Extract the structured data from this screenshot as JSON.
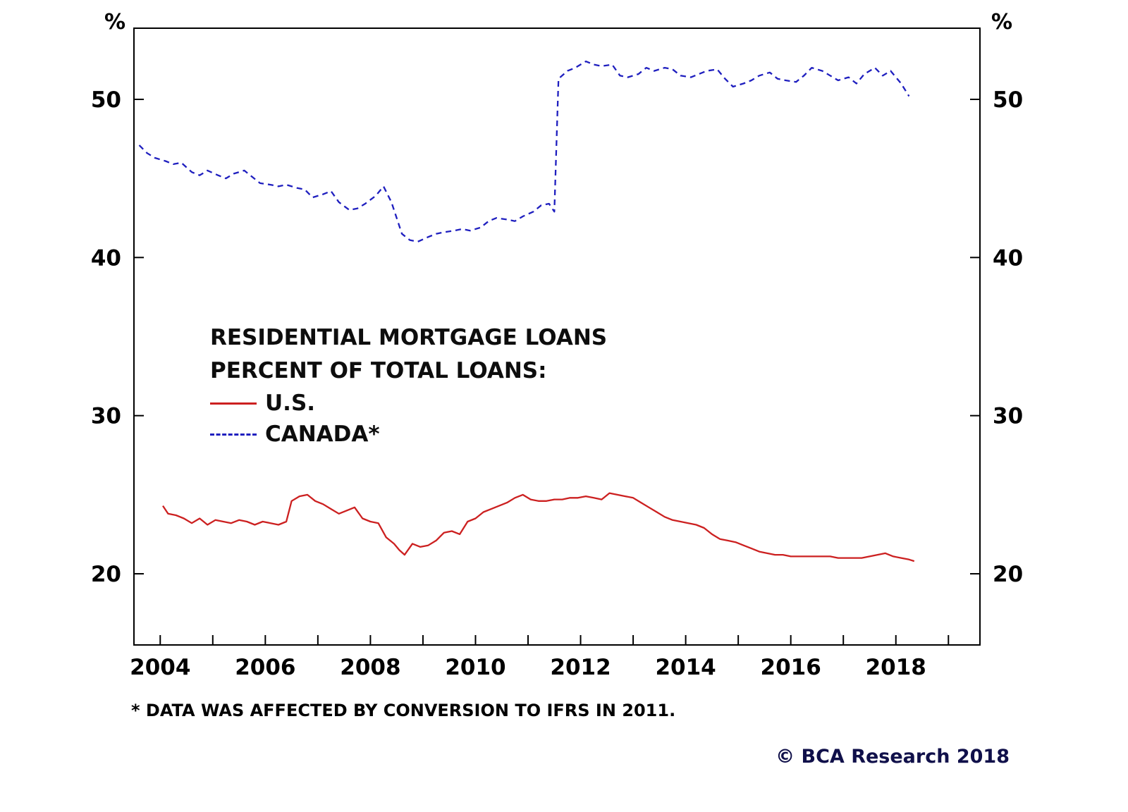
{
  "page": {
    "background": "#ffffff"
  },
  "chart_data": {
    "type": "line",
    "title": "RESIDENTIAL MORTGAGE LOANS",
    "subtitle": "PERCENT OF TOTAL LOANS:",
    "ylabel_left": "%",
    "ylabel_right": "%",
    "grid": false,
    "legend_position": "inside-left-middle",
    "xlim": [
      2003.5,
      2019.6
    ],
    "ylim": [
      15.5,
      54.5
    ],
    "y_ticks": [
      20,
      30,
      40,
      50
    ],
    "x_ticks": [
      2004,
      2006,
      2008,
      2010,
      2012,
      2014,
      2016,
      2018
    ],
    "x_ticks_minor": [
      2004,
      2005,
      2006,
      2007,
      2008,
      2009,
      2010,
      2011,
      2012,
      2013,
      2014,
      2015,
      2016,
      2017,
      2018,
      2019
    ],
    "series": [
      {
        "name": "U.S.",
        "color": "#cc2020",
        "style": "solid",
        "x": [
          2004.05,
          2004.15,
          2004.3,
          2004.45,
          2004.6,
          2004.75,
          2004.9,
          2005.05,
          2005.2,
          2005.35,
          2005.5,
          2005.65,
          2005.8,
          2005.95,
          2006.1,
          2006.25,
          2006.4,
          2006.5,
          2006.65,
          2006.8,
          2006.95,
          2007.1,
          2007.25,
          2007.4,
          2007.55,
          2007.7,
          2007.85,
          2008.0,
          2008.15,
          2008.3,
          2008.45,
          2008.55,
          2008.65,
          2008.8,
          2008.95,
          2009.1,
          2009.25,
          2009.4,
          2009.55,
          2009.7,
          2009.85,
          2010.0,
          2010.15,
          2010.3,
          2010.45,
          2010.6,
          2010.75,
          2010.9,
          2011.05,
          2011.2,
          2011.35,
          2011.5,
          2011.65,
          2011.8,
          2011.95,
          2012.1,
          2012.25,
          2012.4,
          2012.55,
          2012.7,
          2012.85,
          2013.0,
          2013.15,
          2013.3,
          2013.45,
          2013.6,
          2013.75,
          2013.9,
          2014.05,
          2014.2,
          2014.35,
          2014.5,
          2014.65,
          2014.8,
          2014.95,
          2015.1,
          2015.25,
          2015.4,
          2015.55,
          2015.7,
          2015.85,
          2016.0,
          2016.15,
          2016.3,
          2016.45,
          2016.6,
          2016.75,
          2016.9,
          2017.05,
          2017.2,
          2017.35,
          2017.5,
          2017.65,
          2017.8,
          2017.95,
          2018.1,
          2018.25,
          2018.35
        ],
        "y": [
          24.3,
          23.8,
          23.7,
          23.5,
          23.2,
          23.5,
          23.1,
          23.4,
          23.3,
          23.2,
          23.4,
          23.3,
          23.1,
          23.3,
          23.2,
          23.1,
          23.3,
          24.6,
          24.9,
          25.0,
          24.6,
          24.4,
          24.1,
          23.8,
          24.0,
          24.2,
          23.5,
          23.3,
          23.2,
          22.3,
          21.9,
          21.5,
          21.2,
          21.9,
          21.7,
          21.8,
          22.1,
          22.6,
          22.7,
          22.5,
          23.3,
          23.5,
          23.9,
          24.1,
          24.3,
          24.5,
          24.8,
          25.0,
          24.7,
          24.6,
          24.6,
          24.7,
          24.7,
          24.8,
          24.8,
          24.9,
          24.8,
          24.7,
          25.1,
          25.0,
          24.9,
          24.8,
          24.5,
          24.2,
          23.9,
          23.6,
          23.4,
          23.3,
          23.2,
          23.1,
          22.9,
          22.5,
          22.2,
          22.1,
          22.0,
          21.8,
          21.6,
          21.4,
          21.3,
          21.2,
          21.2,
          21.1,
          21.1,
          21.1,
          21.1,
          21.1,
          21.1,
          21.0,
          21.0,
          21.0,
          21.0,
          21.1,
          21.2,
          21.3,
          21.1,
          21.0,
          20.9,
          20.8
        ]
      },
      {
        "name": "CANADA*",
        "color": "#1f1fbf",
        "style": "dashed",
        "x": [
          2003.6,
          2003.75,
          2003.9,
          2004.1,
          2004.25,
          2004.4,
          2004.6,
          2004.75,
          2004.9,
          2005.1,
          2005.25,
          2005.4,
          2005.6,
          2005.75,
          2005.9,
          2006.1,
          2006.25,
          2006.4,
          2006.6,
          2006.75,
          2006.9,
          2007.1,
          2007.25,
          2007.4,
          2007.6,
          2007.75,
          2007.9,
          2008.1,
          2008.25,
          2008.4,
          2008.6,
          2008.75,
          2008.9,
          2009.1,
          2009.25,
          2009.4,
          2009.6,
          2009.75,
          2009.9,
          2010.1,
          2010.25,
          2010.4,
          2010.6,
          2010.75,
          2010.9,
          2011.1,
          2011.25,
          2011.4,
          2011.5,
          2011.58,
          2011.75,
          2011.9,
          2012.1,
          2012.25,
          2012.4,
          2012.6,
          2012.75,
          2012.9,
          2013.1,
          2013.25,
          2013.4,
          2013.6,
          2013.75,
          2013.9,
          2014.1,
          2014.25,
          2014.4,
          2014.6,
          2014.75,
          2014.9,
          2015.1,
          2015.25,
          2015.4,
          2015.6,
          2015.75,
          2015.9,
          2016.1,
          2016.25,
          2016.4,
          2016.6,
          2016.75,
          2016.9,
          2017.1,
          2017.25,
          2017.4,
          2017.6,
          2017.75,
          2017.9,
          2018.1,
          2018.25
        ],
        "y": [
          47.1,
          46.6,
          46.3,
          46.1,
          45.9,
          46.0,
          45.4,
          45.2,
          45.5,
          45.2,
          45.0,
          45.3,
          45.5,
          45.1,
          44.7,
          44.6,
          44.5,
          44.6,
          44.4,
          44.3,
          43.8,
          44.0,
          44.2,
          43.5,
          43.0,
          43.1,
          43.4,
          43.9,
          44.5,
          43.5,
          41.5,
          41.1,
          41.0,
          41.3,
          41.5,
          41.6,
          41.7,
          41.8,
          41.7,
          41.9,
          42.3,
          42.5,
          42.4,
          42.3,
          42.6,
          42.9,
          43.3,
          43.4,
          42.9,
          51.3,
          51.8,
          52.0,
          52.4,
          52.2,
          52.1,
          52.2,
          51.5,
          51.4,
          51.6,
          52.0,
          51.8,
          52.0,
          51.9,
          51.5,
          51.4,
          51.6,
          51.8,
          51.9,
          51.3,
          50.8,
          51.0,
          51.2,
          51.5,
          51.7,
          51.3,
          51.2,
          51.1,
          51.5,
          52.0,
          51.8,
          51.5,
          51.2,
          51.4,
          51.0,
          51.6,
          52.0,
          51.5,
          51.8,
          51.0,
          50.2
        ]
      }
    ],
    "footnote": "* DATA WAS AFFECTED BY CONVERSION TO IFRS IN 2011.",
    "copyright": "© BCA Research 2018"
  }
}
